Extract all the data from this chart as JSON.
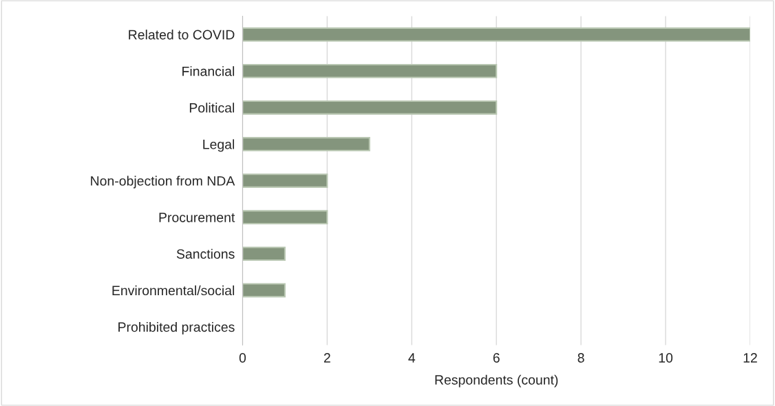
{
  "chart_data": {
    "type": "bar",
    "orientation": "horizontal",
    "xlabel": "Respondents (count)",
    "categories": [
      "Related to COVID",
      "Financial",
      "Political",
      "Legal",
      "Non-objection from NDA",
      "Procurement",
      "Sanctions",
      "Environmental/social",
      "Prohibited practices"
    ],
    "values": [
      12,
      6,
      6,
      3,
      2,
      2,
      1,
      1,
      0
    ],
    "color": "#84957d",
    "xlim": [
      0,
      12
    ],
    "xticks": [
      0,
      2,
      4,
      6,
      8,
      10,
      12
    ],
    "grid": "x"
  }
}
